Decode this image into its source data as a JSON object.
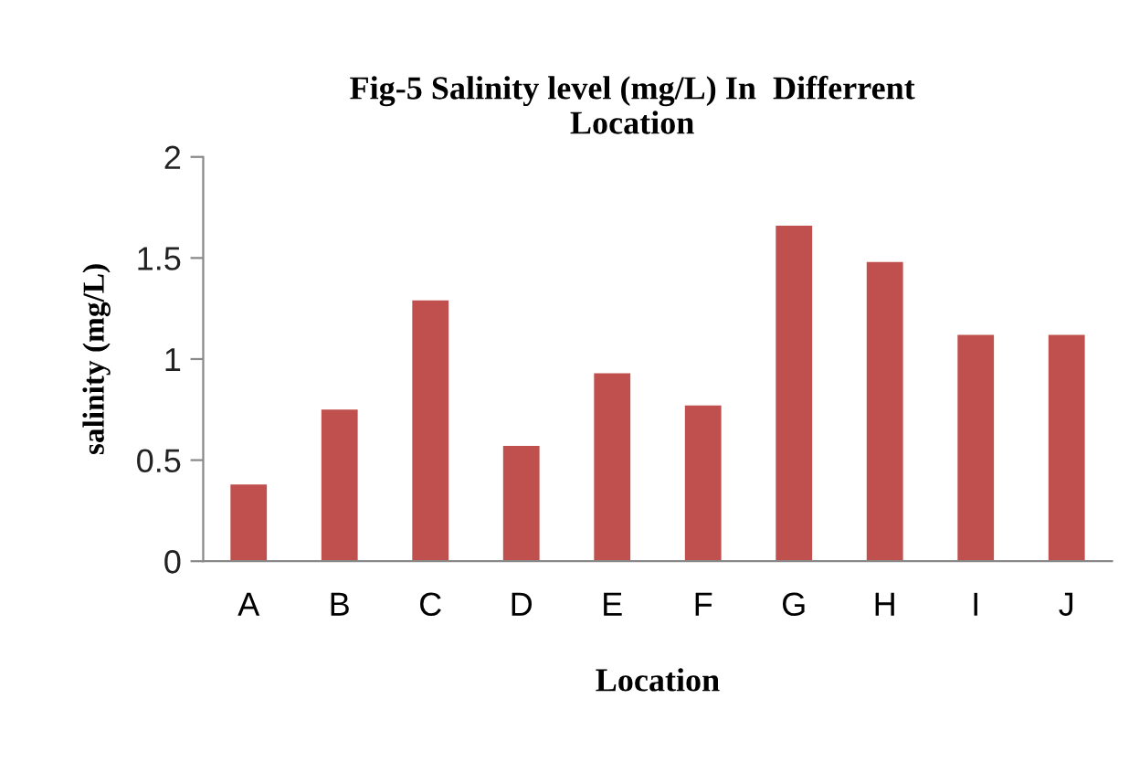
{
  "chart_data": {
    "type": "bar",
    "title": "Fig-5 Salinity level (mg/L) In  Differrent\nLocation",
    "xlabel": "Location",
    "ylabel": "salinity (mg/L)",
    "categories": [
      "A",
      "B",
      "C",
      "D",
      "E",
      "F",
      "G",
      "H",
      "I",
      "J"
    ],
    "values": [
      0.38,
      0.75,
      1.29,
      0.57,
      0.93,
      0.77,
      1.66,
      1.48,
      1.12,
      1.12
    ],
    "color": "#c0504d",
    "ylim": [
      0,
      2
    ],
    "yticks": [
      0,
      0.5,
      1,
      1.5,
      2
    ],
    "grid": false,
    "legend": false
  }
}
